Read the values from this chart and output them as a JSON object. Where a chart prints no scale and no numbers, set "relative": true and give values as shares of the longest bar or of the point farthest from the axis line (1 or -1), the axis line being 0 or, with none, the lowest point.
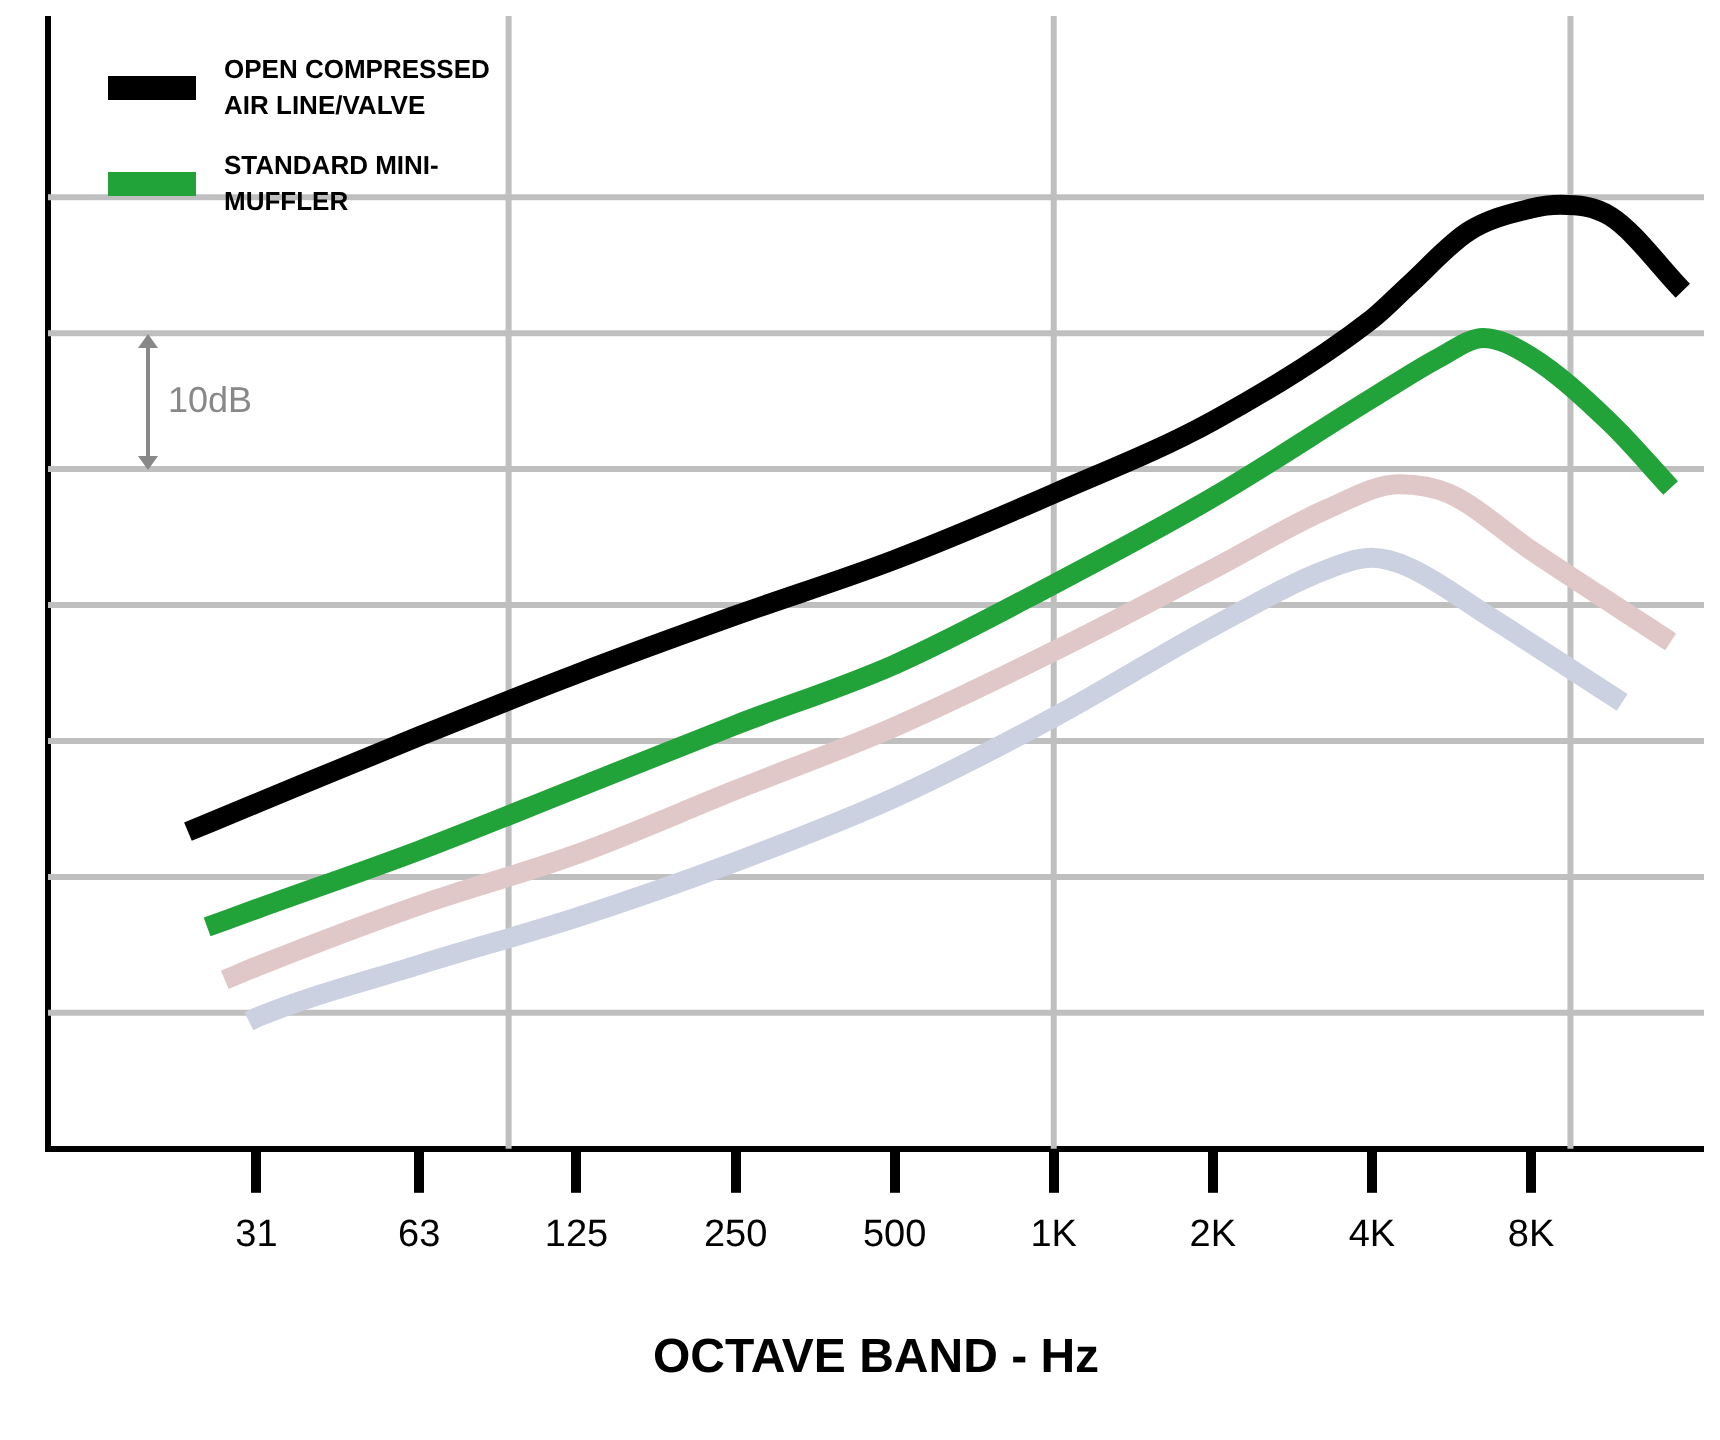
{
  "chart_data": {
    "type": "line",
    "xlabel": "OCTAVE BAND - Hz",
    "relative": true,
    "log": "x",
    "xlim": [
      12.5,
      17000
    ],
    "xticks": [
      31,
      63,
      125,
      250,
      500,
      {
        "value": 1000,
        "label": "1K"
      },
      {
        "value": 2000,
        "label": "2K"
      },
      {
        "value": 4000,
        "label": "4K"
      },
      {
        "value": 8000,
        "label": "8K"
      }
    ],
    "grid": false,
    "legend": "top left",
    "marker": "none",
    "line_style": "solid",
    "annotations": [
      "10dB"
    ],
    "ref_lines": [
      {
        "axis": "y",
        "value": 0.144,
        "color": "#bfbfbf"
      },
      {
        "axis": "y",
        "value": 0.288,
        "color": "#bfbfbf"
      },
      {
        "axis": "y",
        "value": 0.432,
        "color": "#bfbfbf"
      },
      {
        "axis": "y",
        "value": 0.576,
        "color": "#bfbfbf"
      },
      {
        "axis": "y",
        "value": 0.72,
        "color": "#bfbfbf"
      },
      {
        "axis": "y",
        "value": 0.864,
        "color": "#bfbfbf"
      },
      {
        "axis": "y",
        "value": 1.008,
        "color": "#bfbfbf"
      },
      {
        "axis": "x",
        "value": 93,
        "color": "#bfbfbf"
      },
      {
        "axis": "x",
        "value": 1000,
        "color": "#bfbfbf"
      },
      {
        "axis": "x",
        "value": 9500,
        "color": "#bfbfbf"
      }
    ],
    "series": [
      {
        "name": "OPEN COMPRESSED AIR LINE/VALVE",
        "color": "#000000",
        "x": [
          23,
          31,
          63,
          125,
          250,
          500,
          1000,
          2000,
          4000,
          4700,
          6100,
          8000,
          9100,
          11300,
          15500
        ],
        "values": [
          0.336,
          0.366,
          0.437,
          0.503,
          0.565,
          0.624,
          0.694,
          0.771,
          0.879,
          0.915,
          0.972,
          0.996,
          1,
          0.988,
          0.909
        ]
      },
      {
        "name": "STANDARD MINI-MUFFLER",
        "color": "#22a33a",
        "x": [
          25,
          31,
          63,
          125,
          250,
          500,
          1000,
          2000,
          4000,
          5400,
          6500,
          8000,
          11300,
          14700
        ],
        "values": [
          0.235,
          0.254,
          0.316,
          0.382,
          0.449,
          0.513,
          0.598,
          0.69,
          0.795,
          0.839,
          0.859,
          0.839,
          0.769,
          0.7
        ]
      },
      {
        "color": "#e0c8c8",
        "x": [
          27,
          31,
          63,
          125,
          250,
          500,
          1000,
          2000,
          3300,
          4500,
          5600,
          8000,
          14700
        ],
        "values": [
          0.179,
          0.193,
          0.258,
          0.312,
          0.38,
          0.447,
          0.527,
          0.614,
          0.678,
          0.704,
          0.694,
          0.634,
          0.537
        ]
      },
      {
        "color": "#cbd1e0",
        "x": [
          30,
          31,
          63,
          125,
          250,
          500,
          1000,
          2000,
          3300,
          4000,
          4700,
          6700,
          11900
        ],
        "values": [
          0.135,
          0.139,
          0.195,
          0.245,
          0.304,
          0.372,
          0.457,
          0.553,
          0.614,
          0.626,
          0.616,
          0.563,
          0.473
        ]
      }
    ]
  }
}
